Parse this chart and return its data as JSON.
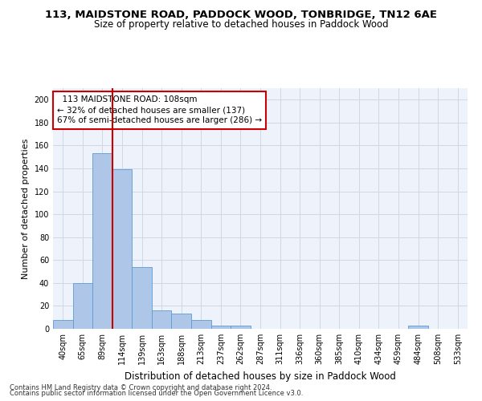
{
  "title": "113, MAIDSTONE ROAD, PADDOCK WOOD, TONBRIDGE, TN12 6AE",
  "subtitle": "Size of property relative to detached houses in Paddock Wood",
  "xlabel": "Distribution of detached houses by size in Paddock Wood",
  "ylabel": "Number of detached properties",
  "footnote1": "Contains HM Land Registry data © Crown copyright and database right 2024.",
  "footnote2": "Contains public sector information licensed under the Open Government Licence v3.0.",
  "annotation_title": "113 MAIDSTONE ROAD: 108sqm",
  "annotation_line1": "← 32% of detached houses are smaller (137)",
  "annotation_line2": "67% of semi-detached houses are larger (286) →",
  "bar_categories": [
    "40sqm",
    "65sqm",
    "89sqm",
    "114sqm",
    "139sqm",
    "163sqm",
    "188sqm",
    "213sqm",
    "237sqm",
    "262sqm",
    "287sqm",
    "311sqm",
    "336sqm",
    "360sqm",
    "385sqm",
    "410sqm",
    "434sqm",
    "459sqm",
    "484sqm",
    "508sqm",
    "533sqm"
  ],
  "bar_values": [
    8,
    40,
    153,
    139,
    54,
    16,
    13,
    8,
    3,
    3,
    0,
    0,
    0,
    0,
    0,
    0,
    0,
    0,
    3,
    0,
    0
  ],
  "bar_color": "#aec6e8",
  "bar_edge_color": "#5b9bd5",
  "vline_color": "#cc0000",
  "vline_x_idx": 2.5,
  "ylim": [
    0,
    210
  ],
  "yticks": [
    0,
    20,
    40,
    60,
    80,
    100,
    120,
    140,
    160,
    180,
    200
  ],
  "grid_color": "#d0d8e8",
  "bg_color": "#eef2fa",
  "annotation_box_facecolor": "#ffffff",
  "annotation_box_edgecolor": "#cc0000",
  "title_fontsize": 9.5,
  "subtitle_fontsize": 8.5,
  "xlabel_fontsize": 8.5,
  "ylabel_fontsize": 8,
  "tick_fontsize": 7,
  "footnote_fontsize": 6,
  "annotation_fontsize": 7.5
}
